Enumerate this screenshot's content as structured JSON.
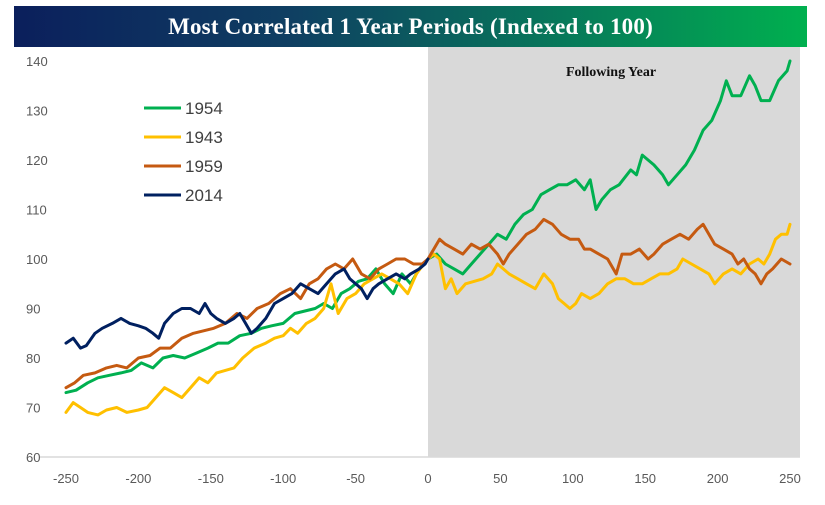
{
  "header": {
    "title": "Most Correlated 1 Year Periods (Indexed to 100)"
  },
  "chart_data": {
    "type": "line",
    "title": "Most Correlated 1 Year Periods (Indexed to 100)",
    "xlabel": "",
    "ylabel": "",
    "xlim": [
      -250,
      250
    ],
    "ylim": [
      60,
      140
    ],
    "x_ticks": [
      -250,
      -200,
      -150,
      -100,
      -50,
      0,
      50,
      100,
      150,
      200,
      250
    ],
    "x_tick_labels": [
      "-250",
      "-200",
      "-150",
      "-100",
      "-50",
      "0",
      "50",
      "100",
      "150",
      "200",
      "250"
    ],
    "y_ticks": [
      60,
      70,
      80,
      90,
      100,
      110,
      120,
      130,
      140
    ],
    "y_tick_labels": [
      "60",
      "70",
      "80",
      "90",
      "100",
      "110",
      "120",
      "130",
      "140"
    ],
    "grid": false,
    "legend_position": "upper-left",
    "shaded_region": {
      "x_from": 0,
      "x_to": 250,
      "label": "Following Year",
      "color": "#d9d9d9"
    },
    "series": [
      {
        "name": "1954",
        "color": "#00b050",
        "points": [
          [
            -250,
            73
          ],
          [
            -243,
            73.5
          ],
          [
            -235,
            75
          ],
          [
            -228,
            76
          ],
          [
            -220,
            76.5
          ],
          [
            -212,
            77
          ],
          [
            -205,
            77.5
          ],
          [
            -198,
            79
          ],
          [
            -190,
            78
          ],
          [
            -183,
            80
          ],
          [
            -176,
            80.5
          ],
          [
            -168,
            80
          ],
          [
            -160,
            81
          ],
          [
            -152,
            82
          ],
          [
            -145,
            83
          ],
          [
            -138,
            83
          ],
          [
            -130,
            84.5
          ],
          [
            -122,
            85
          ],
          [
            -115,
            86
          ],
          [
            -108,
            86.5
          ],
          [
            -100,
            87
          ],
          [
            -92,
            89
          ],
          [
            -85,
            89.5
          ],
          [
            -78,
            90
          ],
          [
            -72,
            91
          ],
          [
            -66,
            90
          ],
          [
            -60,
            93
          ],
          [
            -54,
            94
          ],
          [
            -48,
            95.5
          ],
          [
            -42,
            96
          ],
          [
            -36,
            98
          ],
          [
            -30,
            95
          ],
          [
            -24,
            93
          ],
          [
            -18,
            97
          ],
          [
            -12,
            95
          ],
          [
            -6,
            98
          ],
          [
            0,
            100
          ],
          [
            6,
            101
          ],
          [
            12,
            99
          ],
          [
            18,
            98
          ],
          [
            24,
            97
          ],
          [
            30,
            99
          ],
          [
            36,
            101
          ],
          [
            42,
            103
          ],
          [
            48,
            105
          ],
          [
            54,
            104
          ],
          [
            60,
            107
          ],
          [
            66,
            109
          ],
          [
            72,
            110
          ],
          [
            78,
            113
          ],
          [
            84,
            114
          ],
          [
            90,
            115
          ],
          [
            96,
            115
          ],
          [
            102,
            116
          ],
          [
            108,
            114
          ],
          [
            112,
            116
          ],
          [
            116,
            110
          ],
          [
            120,
            112
          ],
          [
            126,
            114
          ],
          [
            132,
            115
          ],
          [
            140,
            118
          ],
          [
            144,
            117
          ],
          [
            148,
            121
          ],
          [
            152,
            120
          ],
          [
            156,
            119
          ],
          [
            162,
            117
          ],
          [
            166,
            115
          ],
          [
            172,
            117
          ],
          [
            178,
            119
          ],
          [
            184,
            122
          ],
          [
            190,
            126
          ],
          [
            196,
            128
          ],
          [
            202,
            132
          ],
          [
            206,
            136
          ],
          [
            210,
            133
          ],
          [
            216,
            133
          ],
          [
            222,
            137
          ],
          [
            226,
            135
          ],
          [
            230,
            132
          ],
          [
            236,
            132
          ],
          [
            242,
            136
          ],
          [
            248,
            138
          ],
          [
            250,
            140
          ]
        ]
      },
      {
        "name": "1943",
        "color": "#ffc000",
        "points": [
          [
            -250,
            69
          ],
          [
            -245,
            71
          ],
          [
            -240,
            70
          ],
          [
            -235,
            69
          ],
          [
            -228,
            68.5
          ],
          [
            -222,
            69.5
          ],
          [
            -215,
            70
          ],
          [
            -208,
            69
          ],
          [
            -200,
            69.5
          ],
          [
            -194,
            70
          ],
          [
            -188,
            72
          ],
          [
            -182,
            74
          ],
          [
            -176,
            73
          ],
          [
            -170,
            72
          ],
          [
            -164,
            74
          ],
          [
            -158,
            76
          ],
          [
            -152,
            75
          ],
          [
            -146,
            77
          ],
          [
            -140,
            77.5
          ],
          [
            -134,
            78
          ],
          [
            -128,
            80
          ],
          [
            -120,
            82
          ],
          [
            -112,
            83
          ],
          [
            -106,
            84
          ],
          [
            -100,
            84.5
          ],
          [
            -95,
            86
          ],
          [
            -90,
            85
          ],
          [
            -84,
            87
          ],
          [
            -78,
            88
          ],
          [
            -72,
            90
          ],
          [
            -67,
            95
          ],
          [
            -62,
            89
          ],
          [
            -56,
            92
          ],
          [
            -50,
            93
          ],
          [
            -44,
            95
          ],
          [
            -38,
            96
          ],
          [
            -32,
            97
          ],
          [
            -26,
            96
          ],
          [
            -20,
            95
          ],
          [
            -14,
            93
          ],
          [
            -8,
            97
          ],
          [
            -3,
            99
          ],
          [
            0,
            100
          ],
          [
            4,
            101
          ],
          [
            8,
            100
          ],
          [
            12,
            94
          ],
          [
            16,
            96
          ],
          [
            20,
            93
          ],
          [
            26,
            95
          ],
          [
            32,
            95.5
          ],
          [
            38,
            96
          ],
          [
            44,
            97
          ],
          [
            48,
            99
          ],
          [
            52,
            98
          ],
          [
            56,
            97
          ],
          [
            62,
            96
          ],
          [
            68,
            95
          ],
          [
            74,
            94
          ],
          [
            80,
            97
          ],
          [
            86,
            95
          ],
          [
            90,
            92
          ],
          [
            94,
            91
          ],
          [
            98,
            90
          ],
          [
            102,
            91
          ],
          [
            106,
            93
          ],
          [
            112,
            92
          ],
          [
            118,
            93
          ],
          [
            124,
            95
          ],
          [
            130,
            96
          ],
          [
            136,
            96
          ],
          [
            142,
            95
          ],
          [
            148,
            95
          ],
          [
            154,
            96
          ],
          [
            160,
            97
          ],
          [
            166,
            97
          ],
          [
            172,
            98
          ],
          [
            176,
            100
          ],
          [
            182,
            99
          ],
          [
            188,
            98
          ],
          [
            194,
            97
          ],
          [
            198,
            95
          ],
          [
            204,
            97
          ],
          [
            210,
            98
          ],
          [
            216,
            97
          ],
          [
            222,
            99
          ],
          [
            228,
            100
          ],
          [
            232,
            99
          ],
          [
            236,
            101
          ],
          [
            240,
            104
          ],
          [
            244,
            105
          ],
          [
            248,
            105
          ],
          [
            250,
            107
          ]
        ]
      },
      {
        "name": "1959",
        "color": "#c55a11",
        "points": [
          [
            -250,
            74
          ],
          [
            -244,
            75
          ],
          [
            -238,
            76.5
          ],
          [
            -230,
            77
          ],
          [
            -222,
            78
          ],
          [
            -215,
            78.5
          ],
          [
            -208,
            78
          ],
          [
            -200,
            80
          ],
          [
            -192,
            80.5
          ],
          [
            -185,
            82
          ],
          [
            -178,
            82
          ],
          [
            -170,
            84
          ],
          [
            -162,
            85
          ],
          [
            -155,
            85.5
          ],
          [
            -148,
            86
          ],
          [
            -140,
            87
          ],
          [
            -132,
            89
          ],
          [
            -125,
            88
          ],
          [
            -118,
            90
          ],
          [
            -110,
            91
          ],
          [
            -102,
            93
          ],
          [
            -95,
            94
          ],
          [
            -88,
            92
          ],
          [
            -82,
            95
          ],
          [
            -76,
            96
          ],
          [
            -70,
            98
          ],
          [
            -64,
            99
          ],
          [
            -58,
            98
          ],
          [
            -52,
            100
          ],
          [
            -46,
            97
          ],
          [
            -40,
            96
          ],
          [
            -34,
            98
          ],
          [
            -28,
            99
          ],
          [
            -22,
            100
          ],
          [
            -16,
            100
          ],
          [
            -10,
            99
          ],
          [
            -4,
            99
          ],
          [
            0,
            100
          ],
          [
            4,
            102
          ],
          [
            8,
            104
          ],
          [
            12,
            103
          ],
          [
            18,
            102
          ],
          [
            24,
            101
          ],
          [
            30,
            103
          ],
          [
            36,
            102
          ],
          [
            42,
            103
          ],
          [
            48,
            101
          ],
          [
            52,
            99
          ],
          [
            56,
            101
          ],
          [
            62,
            103
          ],
          [
            68,
            105
          ],
          [
            74,
            106
          ],
          [
            80,
            108
          ],
          [
            86,
            107
          ],
          [
            92,
            105
          ],
          [
            98,
            104
          ],
          [
            104,
            104
          ],
          [
            108,
            102
          ],
          [
            112,
            102
          ],
          [
            118,
            101
          ],
          [
            124,
            100
          ],
          [
            128,
            98
          ],
          [
            130,
            97
          ],
          [
            134,
            101
          ],
          [
            140,
            101
          ],
          [
            146,
            102
          ],
          [
            152,
            100
          ],
          [
            156,
            101
          ],
          [
            162,
            103
          ],
          [
            168,
            104
          ],
          [
            174,
            105
          ],
          [
            180,
            104
          ],
          [
            186,
            106
          ],
          [
            190,
            107
          ],
          [
            194,
            105
          ],
          [
            198,
            103
          ],
          [
            204,
            102
          ],
          [
            210,
            101
          ],
          [
            214,
            99
          ],
          [
            218,
            100
          ],
          [
            222,
            98
          ],
          [
            226,
            97
          ],
          [
            230,
            95
          ],
          [
            234,
            97
          ],
          [
            238,
            98
          ],
          [
            244,
            100
          ],
          [
            250,
            99
          ]
        ]
      },
      {
        "name": "2014",
        "color": "#002060",
        "points": [
          [
            -250,
            83
          ],
          [
            -245,
            84
          ],
          [
            -240,
            82
          ],
          [
            -236,
            82.5
          ],
          [
            -230,
            85
          ],
          [
            -225,
            86
          ],
          [
            -218,
            87
          ],
          [
            -212,
            88
          ],
          [
            -206,
            87
          ],
          [
            -200,
            86.5
          ],
          [
            -195,
            86
          ],
          [
            -190,
            85
          ],
          [
            -186,
            84
          ],
          [
            -182,
            87
          ],
          [
            -176,
            89
          ],
          [
            -170,
            90
          ],
          [
            -164,
            90
          ],
          [
            -158,
            89
          ],
          [
            -154,
            91
          ],
          [
            -150,
            89
          ],
          [
            -146,
            88
          ],
          [
            -140,
            87
          ],
          [
            -134,
            88
          ],
          [
            -130,
            89
          ],
          [
            -126,
            87
          ],
          [
            -122,
            85
          ],
          [
            -118,
            86
          ],
          [
            -112,
            88
          ],
          [
            -106,
            91
          ],
          [
            -100,
            92
          ],
          [
            -94,
            93
          ],
          [
            -88,
            95
          ],
          [
            -82,
            94
          ],
          [
            -76,
            93
          ],
          [
            -70,
            95
          ],
          [
            -64,
            97
          ],
          [
            -58,
            98
          ],
          [
            -54,
            96
          ],
          [
            -50,
            95
          ],
          [
            -46,
            94
          ],
          [
            -42,
            92
          ],
          [
            -38,
            94
          ],
          [
            -34,
            95
          ],
          [
            -28,
            96
          ],
          [
            -22,
            97
          ],
          [
            -16,
            96
          ],
          [
            -12,
            97
          ],
          [
            -6,
            98
          ],
          [
            -2,
            99
          ],
          [
            0,
            100
          ]
        ]
      }
    ]
  }
}
